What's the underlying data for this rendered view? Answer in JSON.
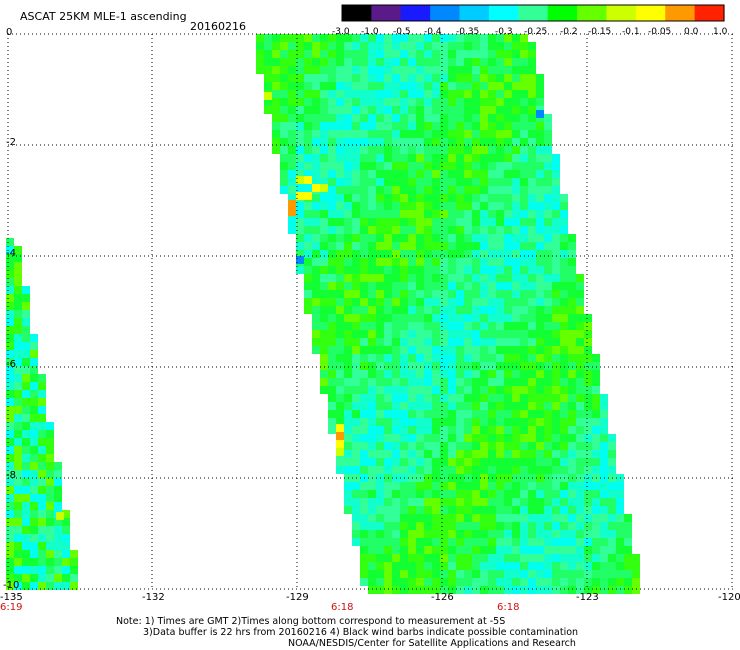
{
  "header": {
    "title": "ASCAT 25KM MLE-1 ascending",
    "date": "20160216"
  },
  "colorbar": {
    "labels": [
      "-3.0",
      "-1.0",
      "-0.5",
      "-0.4",
      "-0.35",
      "-0.3",
      "-0.25",
      "-0.2",
      "-0.15",
      "-0.1",
      "-0.05",
      "0.0",
      "1.0"
    ],
    "colors": [
      "#000000",
      "#5a1a8a",
      "#1a1aff",
      "#0088ff",
      "#00ccff",
      "#00ffff",
      "#33ff99",
      "#00ff00",
      "#66ff00",
      "#ccff00",
      "#ffff00",
      "#ff9900",
      "#ff2200"
    ]
  },
  "axes": {
    "y_ticks": [
      "0",
      "-2",
      "-4",
      "-6",
      "-8",
      "-10"
    ],
    "x_ticks": [
      "-135",
      "-132",
      "-129",
      "-126",
      "-123",
      "-120"
    ]
  },
  "times": [
    "6:19",
    "6:18",
    "6:18"
  ],
  "notes": [
    "Note: 1) Times are GMT 2)Times along bottom correspond to measurement at -5S",
    "3)Data buffer is 22 hrs from 20160216 4) Black wind barbs indicate possible contamination",
    "NOAA/NESDIS/Center for Satellite Applications and Research"
  ]
}
